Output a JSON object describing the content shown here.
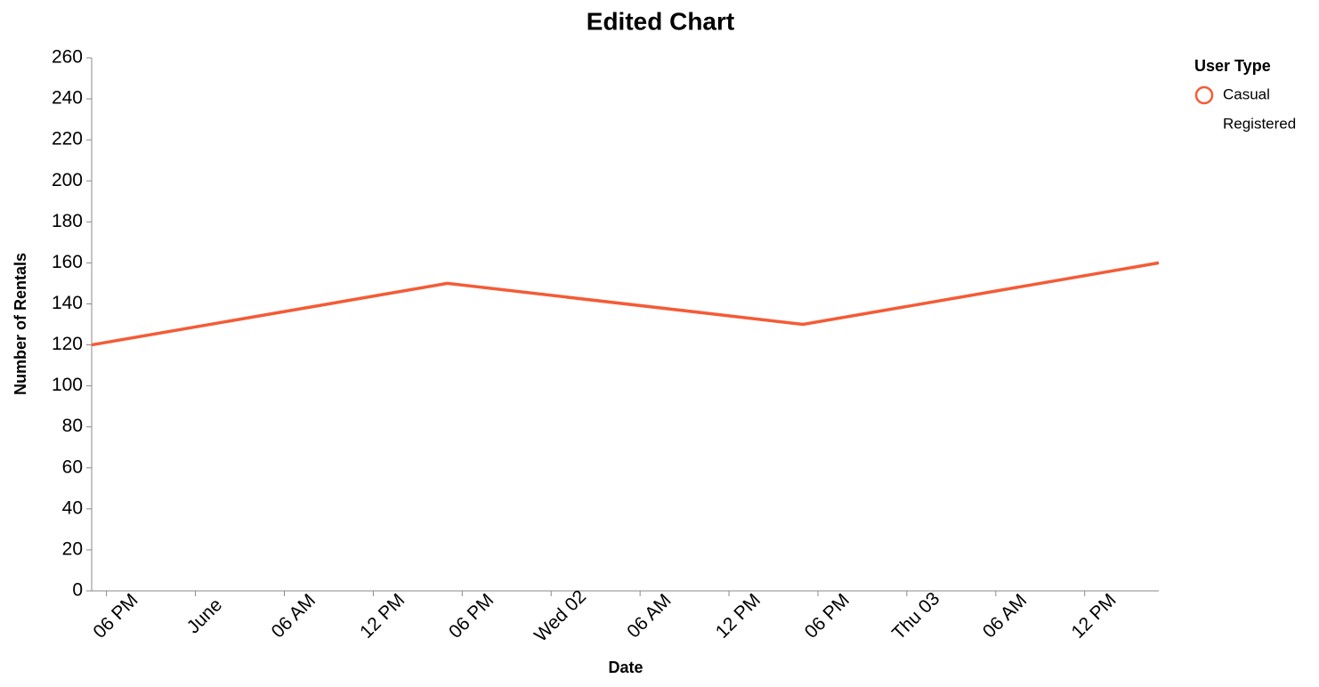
{
  "chart_data": {
    "type": "line",
    "title": "Edited Chart",
    "x_label": "Date",
    "y_label": "Number of Rentals",
    "legend_title": "User Type",
    "x": [
      "05-31T17:00",
      "06-01T17:00",
      "06-02T17:00",
      "06-03T17:00"
    ],
    "series": [
      {
        "name": "Casual",
        "color": "#f45b36",
        "values": [
          120,
          150,
          130,
          160
        ]
      },
      {
        "name": "Registered",
        "values": [
          null,
          null,
          null,
          null
        ]
      }
    ],
    "xlim": [
      "05-31T17:00",
      "06-03T17:00"
    ],
    "xticks": [
      {
        "value": "05-31T18:00",
        "label": "06 PM"
      },
      {
        "value": "06-01T00:00",
        "label": "June"
      },
      {
        "value": "06-01T06:00",
        "label": "06 AM"
      },
      {
        "value": "06-01T12:00",
        "label": "12 PM"
      },
      {
        "value": "06-01T18:00",
        "label": "06 PM"
      },
      {
        "value": "06-02T00:00",
        "label": "Wed 02"
      },
      {
        "value": "06-02T06:00",
        "label": "06 AM"
      },
      {
        "value": "06-02T12:00",
        "label": "12 PM"
      },
      {
        "value": "06-02T18:00",
        "label": "06 PM"
      },
      {
        "value": "06-03T00:00",
        "label": "Thu 03"
      },
      {
        "value": "06-03T06:00",
        "label": "06 AM"
      },
      {
        "value": "06-03T12:00",
        "label": "12 PM"
      }
    ],
    "ylim": [
      0,
      260
    ],
    "yticks": [
      0,
      20,
      40,
      60,
      80,
      100,
      120,
      140,
      160,
      180,
      200,
      220,
      240,
      260
    ],
    "grid": false
  }
}
